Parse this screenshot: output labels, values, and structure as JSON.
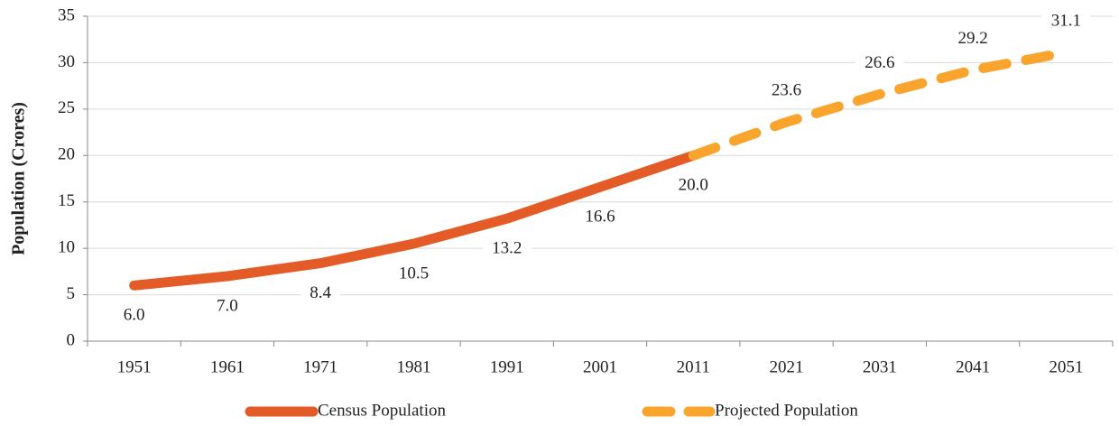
{
  "chart_data": {
    "type": "line",
    "ylabel": "Population (Crores)",
    "categories": [
      "1951",
      "1961",
      "1971",
      "1981",
      "1991",
      "2001",
      "2011",
      "2021",
      "2031",
      "2041",
      "2051"
    ],
    "series": [
      {
        "name": "Census Population",
        "color": "#e35b27",
        "line_style": "solid",
        "values": [
          6.0,
          7.0,
          8.4,
          10.5,
          13.2,
          16.6,
          20.0,
          null,
          null,
          null,
          null
        ],
        "value_labels": [
          "6.0",
          "7.0",
          "8.4",
          "10.5",
          "13.2",
          "16.6",
          "20.0",
          null,
          null,
          null,
          null
        ],
        "label_position": "below"
      },
      {
        "name": "Projected Population",
        "color": "#f9a42c",
        "line_style": "dashed",
        "values": [
          null,
          null,
          null,
          null,
          null,
          null,
          20.0,
          23.6,
          26.6,
          29.2,
          31.1
        ],
        "value_labels": [
          null,
          null,
          null,
          null,
          null,
          null,
          null,
          "23.6",
          "26.6",
          "29.2",
          "31.1"
        ],
        "label_position": "above"
      }
    ],
    "ylim": [
      0,
      35
    ],
    "yticks": [
      0,
      5,
      10,
      15,
      20,
      25,
      30,
      35
    ],
    "grid": true,
    "legend": "bottom"
  }
}
